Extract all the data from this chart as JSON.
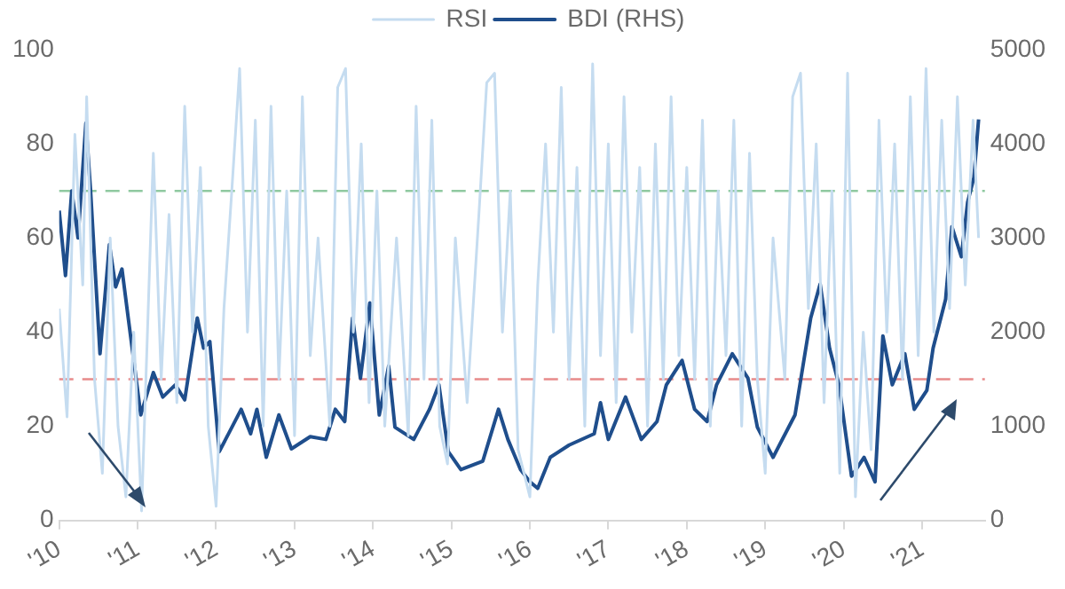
{
  "chart_data": {
    "type": "line",
    "xlim": [
      2010,
      2021.8
    ],
    "xticks": [
      {
        "value": 2010,
        "label": "'10"
      },
      {
        "value": 2011,
        "label": "'11"
      },
      {
        "value": 2012,
        "label": "'12"
      },
      {
        "value": 2013,
        "label": "'13"
      },
      {
        "value": 2014,
        "label": "'14"
      },
      {
        "value": 2015,
        "label": "'15"
      },
      {
        "value": 2016,
        "label": "'16"
      },
      {
        "value": 2017,
        "label": "'17"
      },
      {
        "value": 2018,
        "label": "'18"
      },
      {
        "value": 2019,
        "label": "'19"
      },
      {
        "value": 2020,
        "label": "'20"
      },
      {
        "value": 2021,
        "label": "'21"
      }
    ],
    "ylim": [
      0,
      100
    ],
    "yticks": [
      0,
      20,
      40,
      60,
      80,
      100
    ],
    "y2lim": [
      0,
      5000
    ],
    "y2ticks": [
      0,
      1000,
      2000,
      3000,
      4000,
      5000
    ],
    "grid": false,
    "legend": "top",
    "marker": "none",
    "ref_lines": [
      {
        "axis": "y",
        "value": 70,
        "color": "#8fc9a0",
        "line_style": "dashed"
      },
      {
        "axis": "y",
        "value": 30,
        "color": "#e88a8a",
        "line_style": "dashed"
      }
    ],
    "series": [
      {
        "name": "RSI",
        "color": "#c5dcf0",
        "x": [
          2010.0,
          2010.1,
          2010.2,
          2010.3,
          2010.35,
          2010.45,
          2010.55,
          2010.65,
          2010.75,
          2010.85,
          2010.95,
          2011.05,
          2011.2,
          2011.3,
          2011.4,
          2011.5,
          2011.6,
          2011.7,
          2011.8,
          2011.9,
          2012.0,
          2012.1,
          2012.2,
          2012.3,
          2012.4,
          2012.5,
          2012.6,
          2012.7,
          2012.8,
          2012.9,
          2013.0,
          2013.1,
          2013.2,
          2013.3,
          2013.45,
          2013.55,
          2013.65,
          2013.75,
          2013.85,
          2013.95,
          2014.05,
          2014.15,
          2014.3,
          2014.45,
          2014.55,
          2014.65,
          2014.75,
          2014.85,
          2014.95,
          2015.05,
          2015.2,
          2015.35,
          2015.45,
          2015.55,
          2015.65,
          2015.75,
          2015.85,
          2016.0,
          2016.1,
          2016.2,
          2016.3,
          2016.4,
          2016.5,
          2016.6,
          2016.7,
          2016.8,
          2016.9,
          2017.0,
          2017.1,
          2017.2,
          2017.3,
          2017.4,
          2017.5,
          2017.6,
          2017.7,
          2017.8,
          2017.9,
          2018.0,
          2018.1,
          2018.2,
          2018.3,
          2018.4,
          2018.5,
          2018.6,
          2018.7,
          2018.8,
          2018.9,
          2019.0,
          2019.1,
          2019.25,
          2019.35,
          2019.45,
          2019.55,
          2019.65,
          2019.75,
          2019.85,
          2019.95,
          2020.05,
          2020.15,
          2020.25,
          2020.35,
          2020.45,
          2020.55,
          2020.65,
          2020.75,
          2020.85,
          2020.95,
          2021.05,
          2021.15,
          2021.25,
          2021.35,
          2021.45,
          2021.55,
          2021.65,
          2021.72
        ],
        "values": [
          45,
          22,
          82,
          50,
          90,
          30,
          10,
          60,
          20,
          5,
          40,
          2,
          78,
          30,
          65,
          25,
          88,
          40,
          75,
          20,
          3,
          45,
          70,
          96,
          40,
          85,
          20,
          88,
          30,
          70,
          18,
          90,
          35,
          60,
          20,
          92,
          96,
          40,
          80,
          25,
          70,
          20,
          60,
          18,
          88,
          30,
          85,
          20,
          12,
          60,
          25,
          65,
          93,
          95,
          40,
          70,
          15,
          5,
          50,
          80,
          40,
          92,
          30,
          75,
          20,
          97,
          35,
          80,
          25,
          90,
          40,
          75,
          20,
          80,
          30,
          90,
          35,
          75,
          30,
          85,
          20,
          70,
          35,
          85,
          20,
          78,
          30,
          10,
          60,
          30,
          90,
          95,
          45,
          80,
          25,
          70,
          10,
          95,
          5,
          40,
          15,
          85,
          40,
          80,
          30,
          90,
          35,
          96,
          40,
          85,
          45,
          90,
          50,
          85,
          60
        ]
      },
      {
        "name": "BDI (RHS)",
        "color": "#1f4e8c",
        "axis": "y2",
        "x": [
          2010,
          2010.08,
          2010.16,
          2010.24,
          2010.34,
          2010.4,
          2010.52,
          2010.64,
          2010.72,
          2010.8,
          2010.88,
          2011.04,
          2011.2,
          2011.32,
          2011.48,
          2011.6,
          2011.76,
          2011.84,
          2011.92,
          2012.04,
          2012.32,
          2012.44,
          2012.52,
          2012.64,
          2012.8,
          2012.96,
          2013.2,
          2013.4,
          2013.52,
          2013.64,
          2013.74,
          2013.84,
          2013.96,
          2014.08,
          2014.2,
          2014.28,
          2014.52,
          2014.72,
          2014.84,
          2014.96,
          2015.12,
          2015.4,
          2015.6,
          2015.72,
          2015.88,
          2016,
          2016.1,
          2016.26,
          2016.5,
          2016.82,
          2016.9,
          2017,
          2017.22,
          2017.42,
          2017.62,
          2017.74,
          2017.94,
          2018.1,
          2018.26,
          2018.38,
          2018.58,
          2018.78,
          2018.9,
          2019.1,
          2019.38,
          2019.58,
          2019.7,
          2019.82,
          2019.94,
          2020.1,
          2020.26,
          2020.4,
          2020.5,
          2020.62,
          2020.78,
          2020.9,
          2021.06,
          2021.14,
          2021.3,
          2021.38,
          2021.5,
          2021.58,
          2021.66,
          2021.72
        ],
        "values": [
          3290,
          2600,
          3500,
          3000,
          4220,
          3500,
          1770,
          2930,
          2480,
          2670,
          2150,
          1120,
          1570,
          1310,
          1440,
          1280,
          2150,
          1830,
          1900,
          730,
          1180,
          920,
          1180,
          670,
          1120,
          760,
          890,
          860,
          1180,
          1050,
          2150,
          1510,
          2310,
          1120,
          1640,
          990,
          860,
          1180,
          1440,
          730,
          540,
          630,
          1180,
          860,
          540,
          410,
          340,
          670,
          800,
          920,
          1250,
          860,
          1310,
          860,
          1050,
          1440,
          1700,
          1180,
          1050,
          1440,
          1770,
          1510,
          990,
          670,
          1120,
          2150,
          2510,
          1830,
          1440,
          470,
          670,
          410,
          1960,
          1440,
          1770,
          1180,
          1380,
          1830,
          2350,
          3120,
          2800,
          3380,
          3640,
          4260
        ]
      }
    ]
  }
}
